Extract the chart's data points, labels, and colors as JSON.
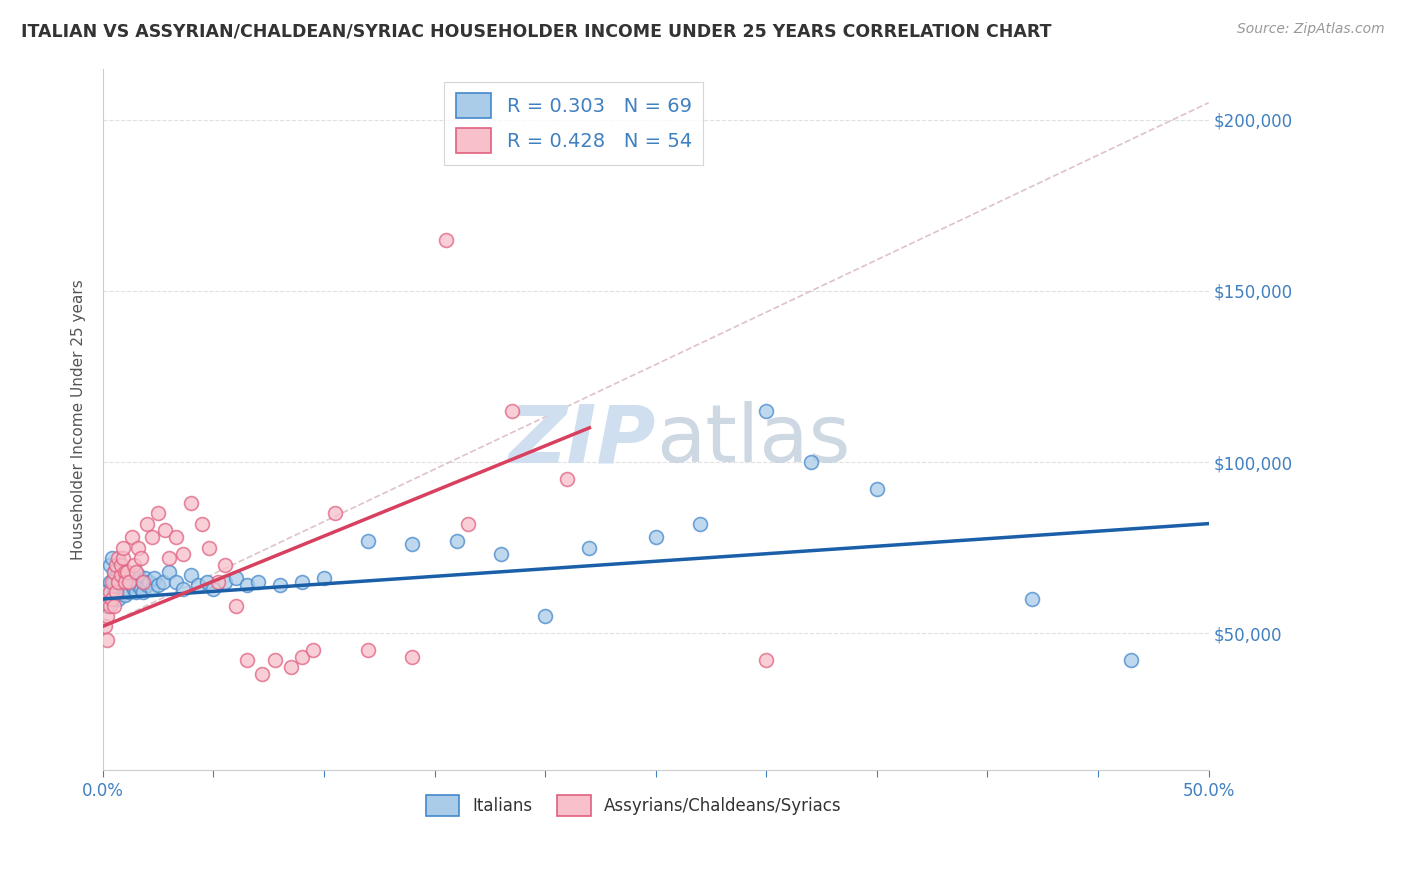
{
  "title": "ITALIAN VS ASSYRIAN/CHALDEAN/SYRIAC HOUSEHOLDER INCOME UNDER 25 YEARS CORRELATION CHART",
  "source": "Source: ZipAtlas.com",
  "ylabel": "Householder Income Under 25 years",
  "xlim": [
    0.0,
    0.5
  ],
  "ylim": [
    10000,
    215000
  ],
  "yticks": [
    50000,
    100000,
    150000,
    200000
  ],
  "ytick_labels": [
    "$50,000",
    "$100,000",
    "$150,000",
    "$200,000"
  ],
  "xtick_positions": [
    0.0,
    0.05,
    0.1,
    0.15,
    0.2,
    0.25,
    0.3,
    0.35,
    0.4,
    0.45,
    0.5
  ],
  "xtick_labels_show": [
    "0.0%",
    "",
    "",
    "",
    "",
    "",
    "",
    "",
    "",
    "",
    "50.0%"
  ],
  "blue_color": "#aacce8",
  "pink_color": "#f8c0ca",
  "blue_edge_color": "#4488cc",
  "pink_edge_color": "#e06080",
  "blue_line_color": "#1a5fa8",
  "pink_line_color": "#d84060",
  "ref_line_color": "#d8b8c0",
  "watermark_color": "#d0dff0",
  "legend_label_blue": "Italians",
  "legend_label_pink": "Assyrians/Chaldeans/Syriacs",
  "axis_label_color": "#4080c0",
  "grid_color": "#dddddd",
  "title_color": "#333333",
  "background_color": "#ffffff",
  "blue_scatter_x": [
    0.001,
    0.002,
    0.003,
    0.003,
    0.004,
    0.004,
    0.005,
    0.005,
    0.005,
    0.006,
    0.006,
    0.007,
    0.007,
    0.007,
    0.008,
    0.008,
    0.009,
    0.009,
    0.01,
    0.01,
    0.01,
    0.011,
    0.011,
    0.012,
    0.012,
    0.013,
    0.013,
    0.014,
    0.015,
    0.015,
    0.016,
    0.016,
    0.017,
    0.018,
    0.018,
    0.019,
    0.02,
    0.021,
    0.022,
    0.023,
    0.025,
    0.027,
    0.03,
    0.033,
    0.036,
    0.04,
    0.043,
    0.047,
    0.05,
    0.055,
    0.06,
    0.065,
    0.07,
    0.08,
    0.09,
    0.1,
    0.12,
    0.14,
    0.16,
    0.18,
    0.2,
    0.22,
    0.25,
    0.27,
    0.3,
    0.32,
    0.35,
    0.42,
    0.465
  ],
  "blue_scatter_y": [
    62000,
    58000,
    65000,
    70000,
    60000,
    72000,
    65000,
    62000,
    68000,
    63000,
    67000,
    65000,
    60000,
    68000,
    62000,
    65000,
    63000,
    67000,
    64000,
    61000,
    66000,
    63000,
    68000,
    62000,
    65000,
    64000,
    67000,
    63000,
    65000,
    62000,
    67000,
    64000,
    63000,
    65000,
    62000,
    66000,
    64000,
    65000,
    63000,
    66000,
    64000,
    65000,
    68000,
    65000,
    63000,
    67000,
    64000,
    65000,
    63000,
    65000,
    66000,
    64000,
    65000,
    64000,
    65000,
    66000,
    77000,
    76000,
    77000,
    73000,
    55000,
    75000,
    78000,
    82000,
    115000,
    100000,
    92000,
    60000,
    42000
  ],
  "pink_scatter_x": [
    0.001,
    0.002,
    0.002,
    0.003,
    0.003,
    0.004,
    0.004,
    0.005,
    0.005,
    0.006,
    0.006,
    0.007,
    0.007,
    0.008,
    0.008,
    0.009,
    0.009,
    0.01,
    0.01,
    0.011,
    0.012,
    0.013,
    0.014,
    0.015,
    0.016,
    0.017,
    0.018,
    0.02,
    0.022,
    0.025,
    0.028,
    0.03,
    0.033,
    0.036,
    0.04,
    0.045,
    0.048,
    0.052,
    0.055,
    0.06,
    0.065,
    0.072,
    0.078,
    0.085,
    0.09,
    0.095,
    0.105,
    0.12,
    0.14,
    0.155,
    0.165,
    0.185,
    0.21,
    0.3
  ],
  "pink_scatter_y": [
    52000,
    48000,
    55000,
    58000,
    62000,
    60000,
    65000,
    58000,
    68000,
    62000,
    70000,
    65000,
    72000,
    67000,
    70000,
    72000,
    75000,
    68000,
    65000,
    68000,
    65000,
    78000,
    70000,
    68000,
    75000,
    72000,
    65000,
    82000,
    78000,
    85000,
    80000,
    72000,
    78000,
    73000,
    88000,
    82000,
    75000,
    65000,
    70000,
    58000,
    42000,
    38000,
    42000,
    40000,
    43000,
    45000,
    85000,
    45000,
    43000,
    165000,
    82000,
    115000,
    95000,
    42000
  ],
  "blue_trend_x": [
    0.0,
    0.5
  ],
  "blue_trend_y": [
    60000,
    82000
  ],
  "pink_trend_x": [
    0.0,
    0.22
  ],
  "pink_trend_y": [
    52000,
    110000
  ],
  "ref_line_x": [
    0.0,
    0.5
  ],
  "ref_line_y": [
    52000,
    205000
  ]
}
